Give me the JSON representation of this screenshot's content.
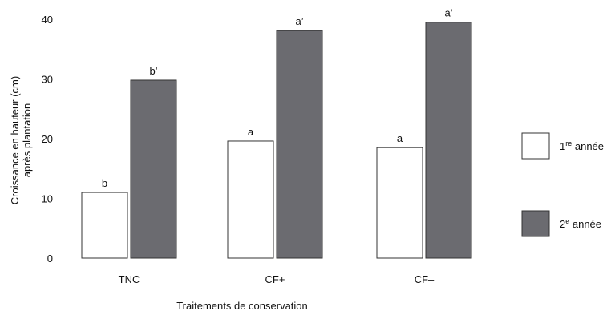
{
  "chart_data": {
    "type": "bar",
    "title": "",
    "xlabel": "Traitements de conservation",
    "ylabel_lines": [
      "Croissance en hauteur (cm)",
      "après plantation"
    ],
    "ylim": [
      0,
      40
    ],
    "yticks": [
      "0",
      "10",
      "20",
      "30",
      "40"
    ],
    "categories": [
      "TNC",
      "CF+",
      "CF–"
    ],
    "series": [
      {
        "name_parts": [
          "1",
          "re",
          " année"
        ],
        "color": "#ffffff",
        "values": [
          11,
          19.6,
          18.5
        ],
        "labels": [
          "b",
          "a",
          "a"
        ]
      },
      {
        "name_parts": [
          "2",
          "e",
          " année"
        ],
        "color": "#6b6b70",
        "values": [
          29.8,
          38.1,
          39.5
        ],
        "labels": [
          "b’",
          "a’",
          "a’"
        ]
      }
    ],
    "grid": false,
    "legend_position": "right"
  }
}
